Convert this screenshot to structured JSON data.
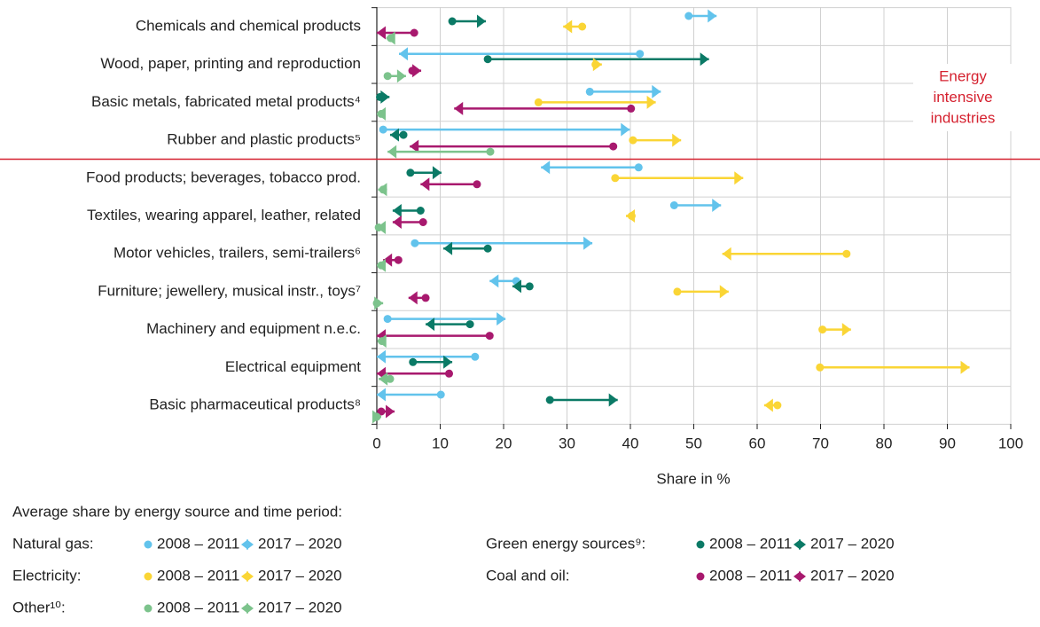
{
  "chart_data": {
    "type": "arrow",
    "categories": [
      "Chemicals and chemical products",
      "Wood, paper, printing and reproduction",
      "Basic metals, fabricated metal products⁴",
      "Rubber and plastic products⁵",
      "Food products; beverages, tobacco prod.",
      "Textiles, wearing apparel, leather, related",
      "Motor vehicles, trailers, semi-trailers⁶",
      "Furniture; jewellery, musical instr., toys⁷",
      "Machinery and equipment n.e.c.",
      "Electrical equipment",
      "Basic pharmaceutical products⁸"
    ],
    "series": [
      {
        "name": "Natural gas:",
        "color": "#62c3ec",
        "start": [
          49.2,
          41.5,
          33.6,
          1.0,
          41.3,
          46.9,
          6.0,
          22.0,
          1.7,
          15.5,
          10.1
        ],
        "end": [
          53.6,
          3.5,
          44.8,
          39.9,
          25.9,
          54.3,
          34.0,
          17.8,
          20.3,
          0.0,
          0.0
        ]
      },
      {
        "name": "Green energy sources⁹:",
        "color": "#0b7a66",
        "start": [
          11.9,
          17.5,
          0.5,
          4.2,
          5.3,
          6.9,
          17.5,
          24.1,
          14.7,
          5.7,
          27.3
        ],
        "end": [
          17.2,
          52.4,
          2.0,
          2.1,
          10.2,
          2.5,
          10.5,
          21.4,
          7.7,
          11.9,
          38.0
        ]
      },
      {
        "name": "Electricity:",
        "color": "#fad535",
        "start": [
          32.4,
          34.5,
          25.5,
          40.4,
          37.6,
          40.2,
          74.1,
          47.4,
          70.3,
          69.9,
          63.2
        ],
        "end": [
          29.4,
          35.5,
          44.0,
          48.0,
          57.8,
          39.3,
          54.5,
          55.5,
          74.8,
          93.5,
          61.1
        ]
      },
      {
        "name": "Coal and oil:",
        "color": "#a8196e",
        "start": [
          5.9,
          5.6,
          40.1,
          37.3,
          15.8,
          7.3,
          3.4,
          7.7,
          17.8,
          11.4,
          0.7
        ],
        "end": [
          0.0,
          7.0,
          12.2,
          5.2,
          6.9,
          2.5,
          1.0,
          5.0,
          0.0,
          0.0,
          2.8
        ]
      },
      {
        "name": "Other¹⁰:",
        "color": "#7cc38c",
        "start": [
          2.2,
          1.7,
          0.7,
          17.9,
          1.0,
          0.3,
          0.7,
          0.0,
          0.8,
          2.1,
          0.0
        ],
        "end": [
          1.5,
          4.6,
          0.0,
          1.7,
          0.2,
          0.0,
          0.0,
          1.0,
          0.1,
          0.3,
          0.7
        ]
      }
    ],
    "xlabel": "Share in %",
    "xlim": [
      0,
      100
    ],
    "xticks": [
      0,
      10,
      20,
      30,
      40,
      50,
      60,
      70,
      80,
      90,
      100
    ],
    "grid": true,
    "annotation": {
      "lines": [
        "Energy",
        "intensive",
        "industries"
      ],
      "color": "#d5212f"
    },
    "legend_title": "Average share by energy source and time period:",
    "legend_periods": [
      "2008 – 2011",
      "2017 – 2020"
    ]
  }
}
